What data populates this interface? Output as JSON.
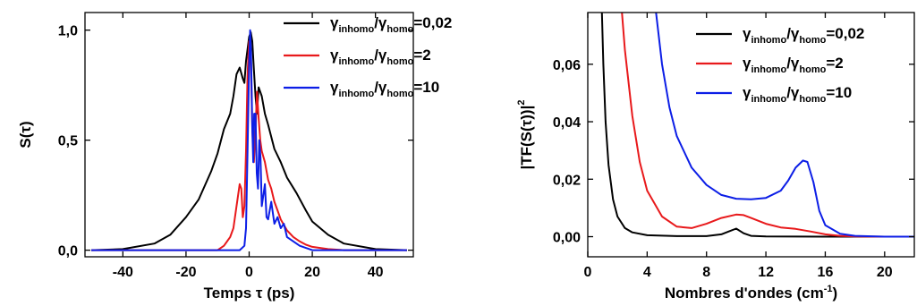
{
  "colors": {
    "black": "#000000",
    "red": "#e8191b",
    "blue": "#0c1ee6"
  },
  "chart_data": [
    {
      "type": "line",
      "ylabel": "S(τ)",
      "xlabel": "Temps τ (ps)",
      "xlim": [
        -52,
        52
      ],
      "ylim": [
        -0.03,
        1.08
      ],
      "xticks": [
        -40,
        -20,
        0,
        20,
        40
      ],
      "xtick_labels": [
        "-40",
        "-20",
        "0",
        "20",
        "40"
      ],
      "yticks": [
        0.0,
        0.5,
        1.0
      ],
      "ytick_labels": [
        "0,0",
        "0,5",
        "1,0"
      ],
      "legend_position": "top-right",
      "series": [
        {
          "legend": {
            "gamma": "γ",
            "sub1": "inhomo",
            "slash": "/",
            "sub2": "homo",
            "value": "=0,02"
          },
          "color": "#000000",
          "x": [
            -50,
            -40,
            -30,
            -25,
            -20,
            -16,
            -12,
            -10,
            -8,
            -6,
            -5,
            -4,
            -3,
            -2,
            -1.5,
            -1,
            0,
            0.5,
            1,
            1.5,
            2,
            2.5,
            3,
            4,
            5,
            6,
            8,
            10,
            12,
            15,
            18,
            20,
            25,
            30,
            40,
            50
          ],
          "y": [
            0.0,
            0.005,
            0.03,
            0.07,
            0.15,
            0.23,
            0.36,
            0.44,
            0.55,
            0.62,
            0.7,
            0.8,
            0.83,
            0.78,
            0.76,
            0.86,
            0.97,
            0.99,
            0.95,
            0.82,
            0.7,
            0.62,
            0.74,
            0.7,
            0.62,
            0.57,
            0.46,
            0.4,
            0.33,
            0.26,
            0.18,
            0.13,
            0.07,
            0.03,
            0.005,
            0.0
          ]
        },
        {
          "legend": {
            "gamma": "γ",
            "sub1": "inhomo",
            "slash": "/",
            "sub2": "homo",
            "value": "=2"
          },
          "color": "#e8191b",
          "x": [
            -50,
            -10,
            -8,
            -6,
            -5,
            -4,
            -3,
            -2.5,
            -2,
            -1.5,
            -1,
            -0.5,
            0,
            0.5,
            1,
            1.5,
            2,
            2.5,
            3,
            3.5,
            4,
            5,
            6,
            7,
            8,
            9,
            10,
            12,
            14,
            16,
            18,
            20,
            25,
            30,
            50
          ],
          "y": [
            0.0,
            0.0,
            0.02,
            0.06,
            0.1,
            0.2,
            0.3,
            0.28,
            0.15,
            0.2,
            0.45,
            0.8,
            0.95,
            0.9,
            0.55,
            0.4,
            0.55,
            0.72,
            0.6,
            0.5,
            0.45,
            0.4,
            0.32,
            0.28,
            0.22,
            0.18,
            0.14,
            0.09,
            0.06,
            0.04,
            0.025,
            0.015,
            0.005,
            0.0,
            0.0
          ]
        },
        {
          "legend": {
            "gamma": "γ",
            "sub1": "inhomo",
            "slash": "/",
            "sub2": "homo",
            "value": "=10"
          },
          "color": "#0c1ee6",
          "x": [
            -50,
            -3,
            -1.5,
            -1,
            -0.5,
            0,
            0.3,
            0.6,
            1,
            1.3,
            1.6,
            2,
            2.4,
            2.8,
            3.2,
            3.6,
            4,
            4.5,
            5,
            5.5,
            6,
            7,
            8,
            9,
            10,
            11,
            12,
            14,
            16,
            20,
            50
          ],
          "y": [
            0.0,
            0.0,
            0.02,
            0.1,
            0.45,
            0.85,
            1.0,
            0.9,
            0.55,
            0.4,
            0.62,
            0.62,
            0.35,
            0.28,
            0.5,
            0.42,
            0.2,
            0.25,
            0.3,
            0.15,
            0.14,
            0.22,
            0.12,
            0.15,
            0.1,
            0.12,
            0.06,
            0.04,
            0.02,
            0.0,
            0.0
          ]
        }
      ]
    },
    {
      "type": "line",
      "ylabel": "|TF(S(τ))|",
      "ylabel_sup": "2",
      "xlabel": "Nombres d'ondes (cm",
      "xlabel_sup": "-1",
      "xlabel_end": ")",
      "xlim": [
        0,
        22
      ],
      "ylim": [
        -0.007,
        0.078
      ],
      "xticks": [
        0,
        4,
        8,
        12,
        16,
        20
      ],
      "xtick_labels": [
        "0",
        "4",
        "8",
        "12",
        "16",
        "20"
      ],
      "yticks": [
        0.0,
        0.02,
        0.04,
        0.06
      ],
      "ytick_labels": [
        "0,00",
        "0,02",
        "0,04",
        "0,06"
      ],
      "legend_position": "top-right",
      "series": [
        {
          "legend": {
            "gamma": "γ",
            "sub1": "inhomo",
            "slash": "/",
            "sub2": "homo",
            "value": "=0,02"
          },
          "color": "#000000",
          "x": [
            0.95,
            1.05,
            1.2,
            1.4,
            1.7,
            2.0,
            2.5,
            3.0,
            4.0,
            6.0,
            8.0,
            9.0,
            9.5,
            10.0,
            10.5,
            11.0,
            12.0,
            16.0,
            22.0
          ],
          "y": [
            0.078,
            0.06,
            0.04,
            0.025,
            0.013,
            0.007,
            0.003,
            0.0015,
            0.0005,
            0.0002,
            0.0002,
            0.0008,
            0.0018,
            0.0028,
            0.0012,
            0.0003,
            0.0001,
            0.0,
            0.0
          ]
        },
        {
          "legend": {
            "gamma": "γ",
            "sub1": "inhomo",
            "slash": "/",
            "sub2": "homo",
            "value": "=2"
          },
          "color": "#e8191b",
          "x": [
            2.3,
            2.5,
            3.0,
            3.5,
            4.0,
            5.0,
            6.0,
            7.0,
            8.0,
            9.0,
            10.0,
            10.5,
            11.0,
            12.0,
            13.0,
            14.0,
            15.0,
            16.0,
            17.0,
            18.0,
            20.0,
            22.0
          ],
          "y": [
            0.078,
            0.065,
            0.042,
            0.026,
            0.016,
            0.007,
            0.0035,
            0.003,
            0.0045,
            0.0065,
            0.0077,
            0.0075,
            0.0065,
            0.0045,
            0.0032,
            0.0027,
            0.0018,
            0.0008,
            0.0003,
            0.0001,
            0.0,
            0.0
          ]
        },
        {
          "legend": {
            "gamma": "γ",
            "sub1": "inhomo",
            "slash": "/",
            "sub2": "homo",
            "value": "=10"
          },
          "color": "#0c1ee6",
          "x": [
            4.6,
            5.0,
            5.5,
            6.0,
            7.0,
            8.0,
            9.0,
            10.0,
            11.0,
            12.0,
            13.0,
            13.5,
            14.0,
            14.5,
            14.8,
            15.2,
            15.6,
            16.0,
            17.0,
            18.0,
            20.0,
            22.0
          ],
          "y": [
            0.078,
            0.06,
            0.045,
            0.035,
            0.024,
            0.018,
            0.0145,
            0.0132,
            0.013,
            0.0135,
            0.016,
            0.0195,
            0.024,
            0.0265,
            0.026,
            0.019,
            0.009,
            0.004,
            0.001,
            0.0003,
            0.0,
            0.0
          ]
        }
      ]
    }
  ]
}
